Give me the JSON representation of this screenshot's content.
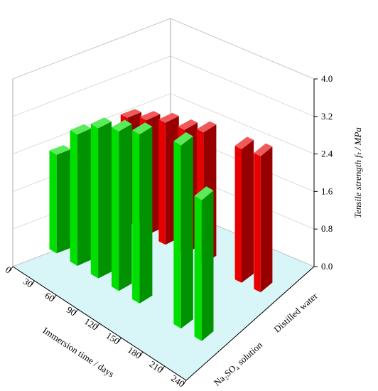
{
  "chart_data": {
    "type": "bar3d",
    "x_label": "Immersion time / days",
    "y_label": "Tensile strength fₜ / MPa",
    "xlim": [
      0,
      240
    ],
    "xticks": [
      0,
      30,
      60,
      90,
      120,
      150,
      180,
      210,
      240
    ],
    "ylim": [
      0,
      4
    ],
    "yticks": [
      {
        "value": 0,
        "label": "0.0"
      },
      0.8,
      1.6,
      2.4,
      3.2,
      {
        "value": 4,
        "label": "4.0"
      }
    ],
    "grid": true,
    "series": [
      {
        "name": "Distilled water",
        "color": "#e80000",
        "x": [
          0,
          30,
          60,
          90,
          120,
          180,
          210
        ],
        "values": [
          2.3,
          2.45,
          2.6,
          2.65,
          2.8,
          2.85,
          2.9
        ]
      },
      {
        "name": "Na₂SO₄ solution",
        "color": "#00e000",
        "x": [
          0,
          30,
          60,
          90,
          120,
          180,
          210
        ],
        "values": [
          2.1,
          2.8,
          3.2,
          3.4,
          3.6,
          3.9,
          3.0
        ]
      }
    ]
  }
}
